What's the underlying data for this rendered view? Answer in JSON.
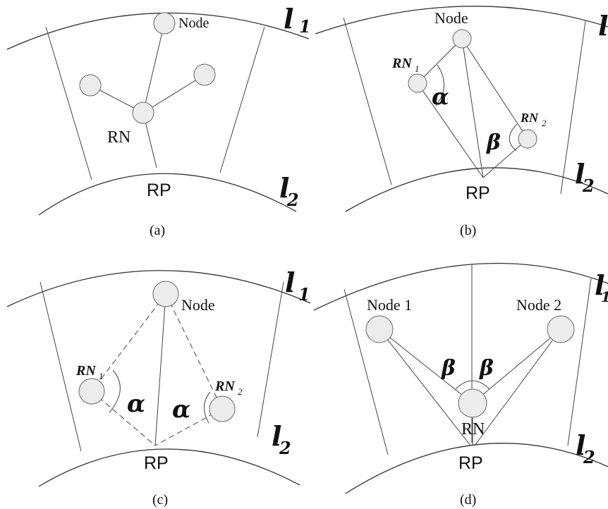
{
  "panels": {
    "a": {
      "caption": "(a)",
      "node_label": "Node",
      "relay_label": "RN",
      "rp_label": "RP",
      "level_top": "l",
      "level_top_sub": "1",
      "level_bottom": "l",
      "level_bottom_sub": "2"
    },
    "b": {
      "caption": "(b)",
      "node_label": "Node",
      "rn1_label": "RN",
      "rn1_sub": "1",
      "rn2_label": "RN",
      "rn2_sub": "2",
      "alpha": "α",
      "beta": "β",
      "rp_label": "RP",
      "level_top": "l",
      "level_bottom": "l",
      "level_bottom_sub": "2"
    },
    "c": {
      "caption": "(c)",
      "node_label": "Node",
      "rn1_label": "RN",
      "rn1_sub": "1",
      "rn2_label": "RN",
      "rn2_sub": "2",
      "alpha_left": "α",
      "alpha_right": "α",
      "rp_label": "RP",
      "level_top": "l",
      "level_top_sub": "1",
      "level_bottom": "l",
      "level_bottom_sub": "2"
    },
    "d": {
      "caption": "(d)",
      "node1_label": "Node 1",
      "node2_label": "Node 2",
      "relay_label": "RN",
      "beta_left": "β",
      "beta_right": "β",
      "rp_label": "RP",
      "level_top": "l",
      "level_top_sub": "1",
      "level_bottom": "l",
      "level_bottom_sub": "2"
    }
  }
}
